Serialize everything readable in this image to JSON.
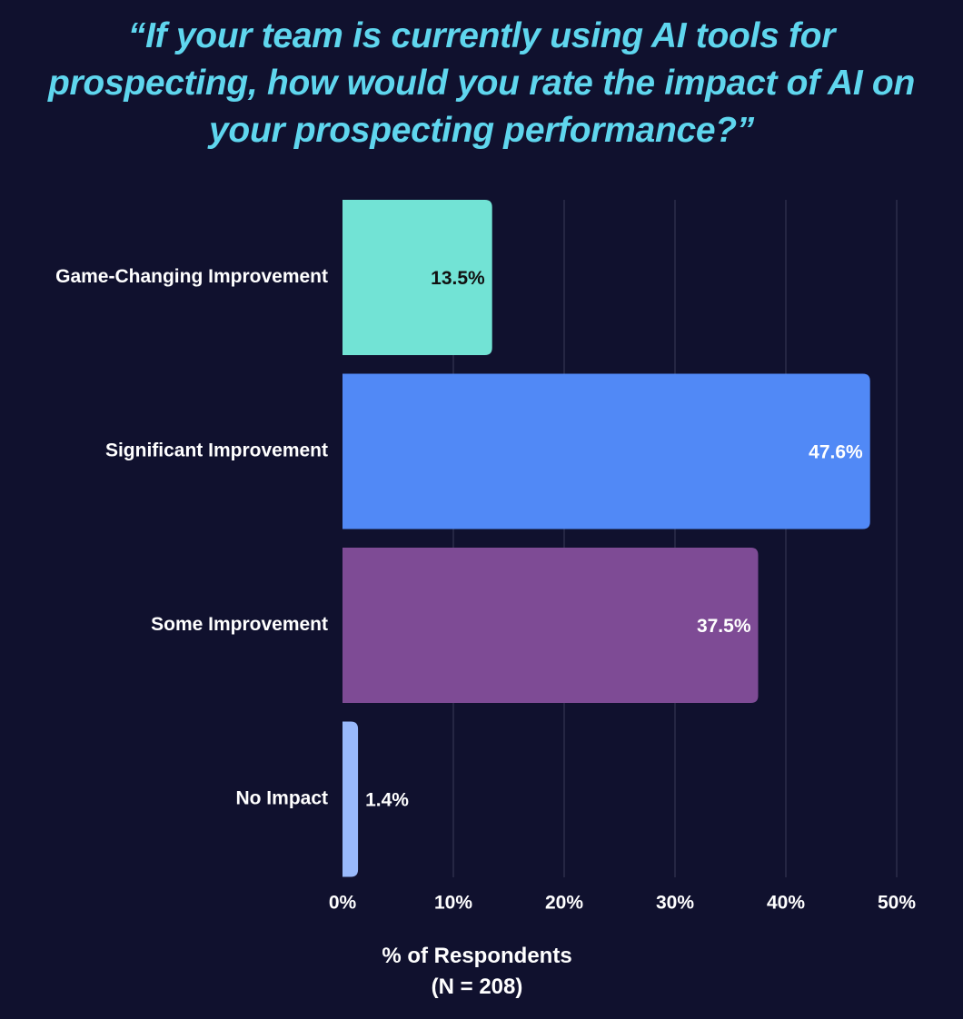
{
  "title_lines": [
    "“If your team is currently using AI tools for",
    "prospecting, how would you rate the impact of AI on",
    "your prospecting performance?”"
  ],
  "chart_data": {
    "type": "bar",
    "orientation": "horizontal",
    "categories": [
      "Game-Changing Improvement",
      "Significant Improvement",
      "Some Improvement",
      "No Impact"
    ],
    "values": [
      13.5,
      47.6,
      37.5,
      1.4
    ],
    "value_labels": [
      "13.5%",
      "47.6%",
      "37.5%",
      "1.4%"
    ],
    "bar_colors": [
      "#72e3d5",
      "#5189f6",
      "#7e4b95",
      "#99b9fb"
    ],
    "label_colors": [
      "#111111",
      "#ffffff",
      "#ffffff",
      "#ffffff"
    ],
    "xlim": [
      0,
      50
    ],
    "x_ticks": [
      0,
      10,
      20,
      30,
      40,
      50
    ],
    "x_tick_labels": [
      "0%",
      "10%",
      "20%",
      "30%",
      "40%",
      "50%"
    ],
    "xlabel_lines": [
      "% of Respondents",
      "(N = 208)"
    ],
    "grid": true,
    "colors": {
      "background": "#10112e",
      "title": "#5fd6ee",
      "grid": "#3a3c58",
      "text": "#ffffff"
    }
  }
}
